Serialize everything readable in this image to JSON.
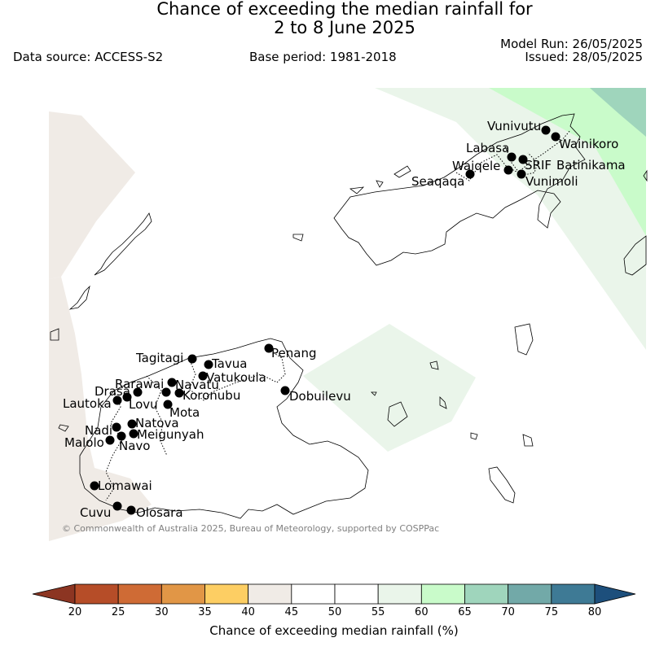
{
  "header": {
    "title_line1": "Chance of exceeding the median rainfall for",
    "title_line2": "2 to 8 June 2025",
    "data_source": "Data source: ACCESS-S2",
    "base_period": "Base period: 1981-2018",
    "model_run": "Model Run: 26/05/2025",
    "issued": "Issued: 28/05/2025"
  },
  "map": {
    "credit": "© Commonwealth of Australia 2025, Bureau of Meteorology, supported by COSPPac",
    "stations": [
      {
        "name": "Vunivutu"
      },
      {
        "name": "Wainikoro"
      },
      {
        "name": "Labasa"
      },
      {
        "name": "SRIF"
      },
      {
        "name": "Batinikama"
      },
      {
        "name": "Waiqele"
      },
      {
        "name": "Vunimoli"
      },
      {
        "name": "Seaqaqa"
      },
      {
        "name": "Penang"
      },
      {
        "name": "Tagitagi"
      },
      {
        "name": "Tavua"
      },
      {
        "name": "Vatukoula"
      },
      {
        "name": "Rarawai"
      },
      {
        "name": "Navatu"
      },
      {
        "name": "Drasa"
      },
      {
        "name": "Koronubu"
      },
      {
        "name": "Lautoka"
      },
      {
        "name": "Lovu"
      },
      {
        "name": "Mota"
      },
      {
        "name": "Dobuilevu"
      },
      {
        "name": "Natova"
      },
      {
        "name": "Nadi"
      },
      {
        "name": "Meigunyah"
      },
      {
        "name": "Malolo"
      },
      {
        "name": "Navo"
      },
      {
        "name": "Lomawai"
      },
      {
        "name": "Cuvu"
      },
      {
        "name": "Olosara"
      }
    ]
  },
  "colorbar": {
    "ticks": [
      "20",
      "25",
      "30",
      "35",
      "40",
      "45",
      "50",
      "55",
      "60",
      "65",
      "70",
      "75",
      "80"
    ],
    "colors": [
      "#b64d28",
      "#cf6b35",
      "#e19646",
      "#fdce63",
      "#f0ebe6",
      "#ffffff",
      "#ffffff",
      "#eaf5ea",
      "#c9fbca",
      "#9fd5bc",
      "#72a9a8",
      "#3e7a95"
    ],
    "low_extend_color": "#8c3522",
    "high_extend_color": "#1d4f7c",
    "label": "Chance of exceeding median rainfall (%)"
  }
}
